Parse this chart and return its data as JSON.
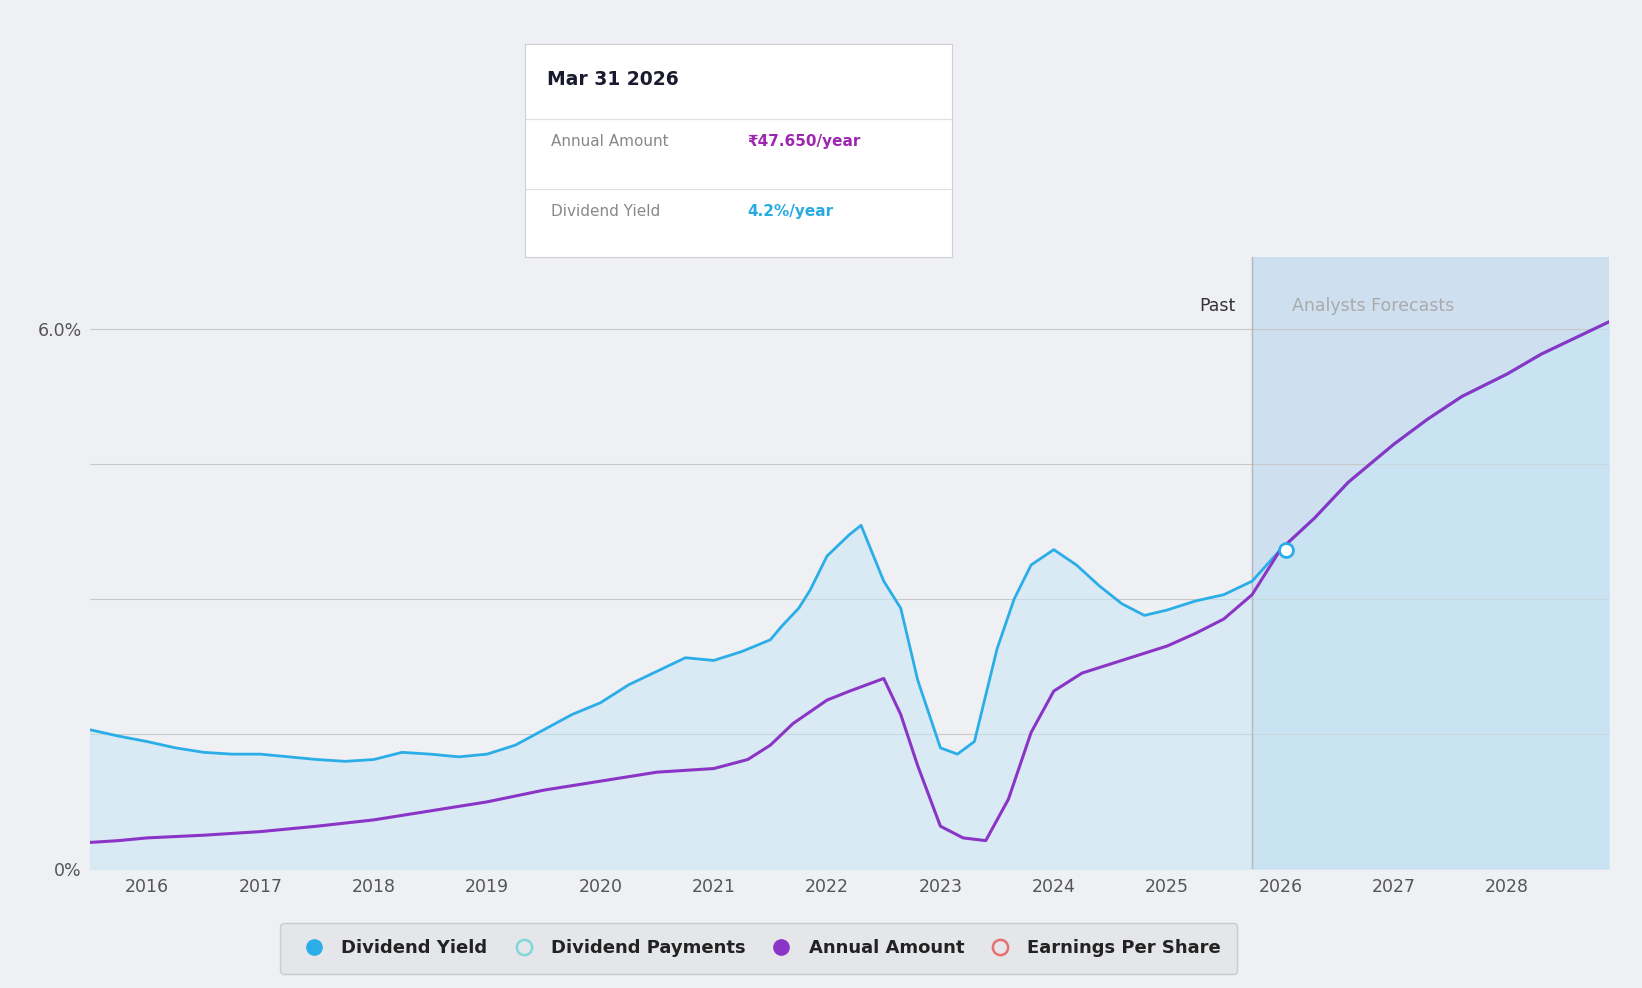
{
  "background_color": "#eef0f3",
  "plot_bg_color": "#eef0f3",
  "ylim": [
    0,
    6.8
  ],
  "xlim": [
    2015.5,
    2028.9
  ],
  "xticks": [
    2016,
    2017,
    2018,
    2019,
    2020,
    2021,
    2022,
    2023,
    2024,
    2025,
    2026,
    2027,
    2028
  ],
  "forecast_start": 2025.75,
  "forecast_end": 2028.9,
  "blue_line_color": "#2baee8",
  "blue_fill_color": "#c8e6f5",
  "purple_line_color": "#8b35c7",
  "forecast_fill_color": "#bdd8ee",
  "marker_x": 2026.05,
  "marker_y": 3.55,
  "tooltip_title": "Mar 31 2026",
  "tooltip_row1_label": "Annual Amount",
  "tooltip_row1_value": "₹47.650/year",
  "tooltip_row2_label": "Dividend Yield",
  "tooltip_row2_value": "4.2%/year",
  "tooltip_value1_color": "#9c27b0",
  "tooltip_value2_color": "#29aae2",
  "legend_items": [
    {
      "label": "Dividend Yield",
      "color": "#2baee8",
      "marker": "circle_filled"
    },
    {
      "label": "Dividend Payments",
      "color": "#7ed8d8",
      "marker": "circle_open"
    },
    {
      "label": "Annual Amount",
      "color": "#8b35c7",
      "marker": "circle_filled"
    },
    {
      "label": "Earnings Per Share",
      "color": "#e87070",
      "marker": "circle_open"
    }
  ],
  "blue_x": [
    2015.5,
    2015.75,
    2016.0,
    2016.25,
    2016.5,
    2016.75,
    2017.0,
    2017.25,
    2017.5,
    2017.75,
    2018.0,
    2018.25,
    2018.5,
    2018.75,
    2019.0,
    2019.25,
    2019.5,
    2019.75,
    2020.0,
    2020.25,
    2020.5,
    2020.75,
    2021.0,
    2021.25,
    2021.5,
    2021.6,
    2021.75,
    2021.85,
    2022.0,
    2022.1,
    2022.2,
    2022.3,
    2022.5,
    2022.65,
    2022.8,
    2023.0,
    2023.15,
    2023.3,
    2023.5,
    2023.65,
    2023.8,
    2024.0,
    2024.2,
    2024.4,
    2024.6,
    2024.8,
    2025.0,
    2025.25,
    2025.5,
    2025.75,
    2026.0
  ],
  "blue_y": [
    1.55,
    1.48,
    1.42,
    1.35,
    1.3,
    1.28,
    1.28,
    1.25,
    1.22,
    1.2,
    1.22,
    1.3,
    1.28,
    1.25,
    1.28,
    1.38,
    1.55,
    1.72,
    1.85,
    2.05,
    2.2,
    2.35,
    2.32,
    2.42,
    2.55,
    2.7,
    2.9,
    3.1,
    3.48,
    3.6,
    3.72,
    3.82,
    3.2,
    2.9,
    2.1,
    1.35,
    1.28,
    1.42,
    2.45,
    3.0,
    3.38,
    3.55,
    3.38,
    3.15,
    2.95,
    2.82,
    2.88,
    2.98,
    3.05,
    3.2,
    3.55
  ],
  "blue_forecast_x": [
    2026.0,
    2026.3,
    2026.6,
    2027.0,
    2027.3,
    2027.6,
    2028.0,
    2028.3,
    2028.6,
    2028.9
  ],
  "blue_forecast_y": [
    3.55,
    3.9,
    4.3,
    4.72,
    5.0,
    5.25,
    5.5,
    5.72,
    5.9,
    6.08
  ],
  "purple_x": [
    2015.5,
    2015.75,
    2016.0,
    2016.5,
    2017.0,
    2017.5,
    2018.0,
    2018.5,
    2019.0,
    2019.5,
    2020.0,
    2020.5,
    2021.0,
    2021.3,
    2021.5,
    2021.7,
    2022.0,
    2022.2,
    2022.35,
    2022.5,
    2022.65,
    2022.8,
    2023.0,
    2023.2,
    2023.4,
    2023.6,
    2023.8,
    2024.0,
    2024.25,
    2024.5,
    2024.75,
    2025.0,
    2025.25,
    2025.5,
    2025.75,
    2026.0
  ],
  "purple_y": [
    0.3,
    0.32,
    0.35,
    0.38,
    0.42,
    0.48,
    0.55,
    0.65,
    0.75,
    0.88,
    0.98,
    1.08,
    1.12,
    1.22,
    1.38,
    1.62,
    1.88,
    1.98,
    2.05,
    2.12,
    1.72,
    1.15,
    0.48,
    0.35,
    0.32,
    0.78,
    1.52,
    1.98,
    2.18,
    2.28,
    2.38,
    2.48,
    2.62,
    2.78,
    3.05,
    3.55
  ],
  "purple_forecast_x": [
    2026.0,
    2026.3,
    2026.6,
    2027.0,
    2027.3,
    2027.6,
    2028.0,
    2028.3,
    2028.6,
    2028.9
  ],
  "purple_forecast_y": [
    3.55,
    3.9,
    4.3,
    4.72,
    5.0,
    5.25,
    5.5,
    5.72,
    5.9,
    6.08
  ],
  "gridline_y": [
    0,
    1.5,
    3.0,
    4.5,
    6.0
  ],
  "ytick_vals": [
    0,
    6.0
  ],
  "ytick_labels": [
    "0%",
    "6.0%"
  ]
}
